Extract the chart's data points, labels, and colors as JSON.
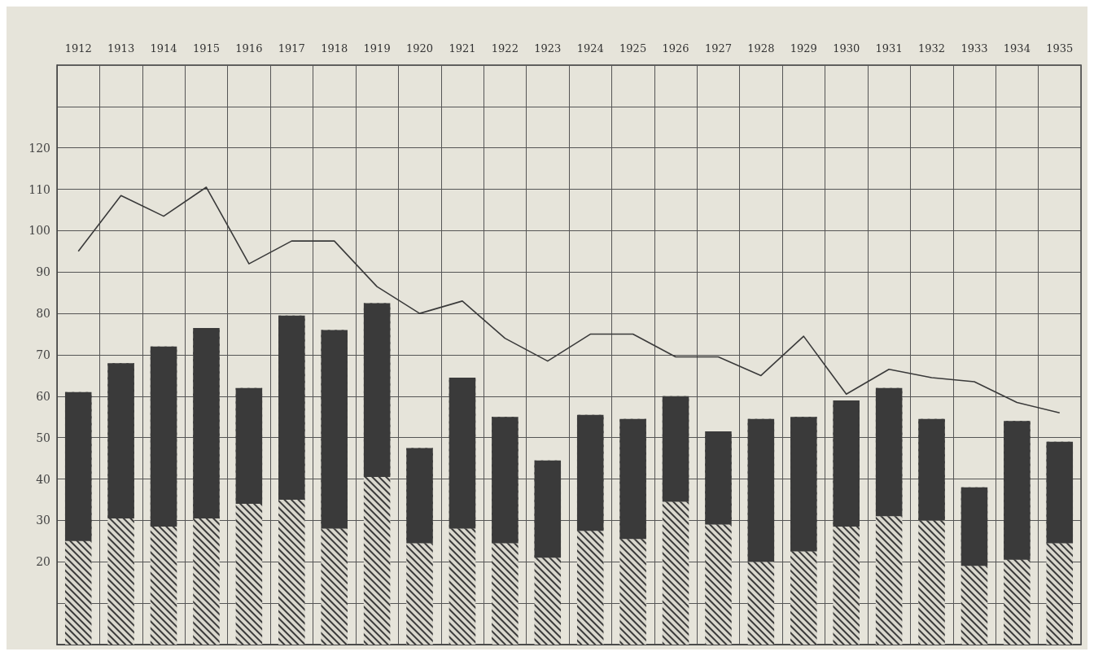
{
  "chart_data": {
    "type": "bar",
    "stacked": true,
    "categories": [
      "1912",
      "1913",
      "1914",
      "1915",
      "1916",
      "1917",
      "1918",
      "1919",
      "1920",
      "1921",
      "1922",
      "1923",
      "1924",
      "1925",
      "1926",
      "1927",
      "1928",
      "1929",
      "1930",
      "1931",
      "1932",
      "1933",
      "1934",
      "1935"
    ],
    "series": [
      {
        "color": "#d9d7cd",
        "values": [
          25,
          30.5,
          28.5,
          30.5,
          34,
          35,
          28,
          40.5,
          24.5,
          28,
          24.5,
          21,
          27.5,
          25.5,
          34.5,
          29,
          20,
          22.5,
          28.5,
          31,
          30,
          19,
          20.5,
          24.5
        ]
      },
      {
        "color": "#3a3a3a",
        "values": [
          36,
          37.5,
          43.5,
          46,
          28,
          44.5,
          48,
          42,
          23,
          36.5,
          30.5,
          23.5,
          28,
          29,
          25.5,
          22.5,
          34.5,
          32.5,
          30.5,
          31,
          24.5,
          19,
          33.5,
          24.5
        ]
      },
      {
        "type": "line",
        "color": "#3a3a3a",
        "values": [
          95,
          108.5,
          103.5,
          110.5,
          92,
          97.5,
          97.5,
          86.5,
          80,
          83,
          74,
          68.5,
          75,
          75,
          69.5,
          69.5,
          65,
          74.5,
          60.5,
          66.5,
          64.5,
          63.5,
          58.5,
          56
        ]
      }
    ],
    "ylim": [
      0,
      140
    ],
    "yticks": [
      {
        "value": 0,
        "label": null
      },
      {
        "value": 10,
        "label": null
      },
      20,
      30,
      40,
      50,
      60,
      70,
      80,
      90,
      100,
      110,
      120,
      {
        "value": 130,
        "label": null
      },
      {
        "value": 140,
        "label": null
      }
    ],
    "grid": true,
    "marker": "none",
    "line_style": "solid"
  }
}
